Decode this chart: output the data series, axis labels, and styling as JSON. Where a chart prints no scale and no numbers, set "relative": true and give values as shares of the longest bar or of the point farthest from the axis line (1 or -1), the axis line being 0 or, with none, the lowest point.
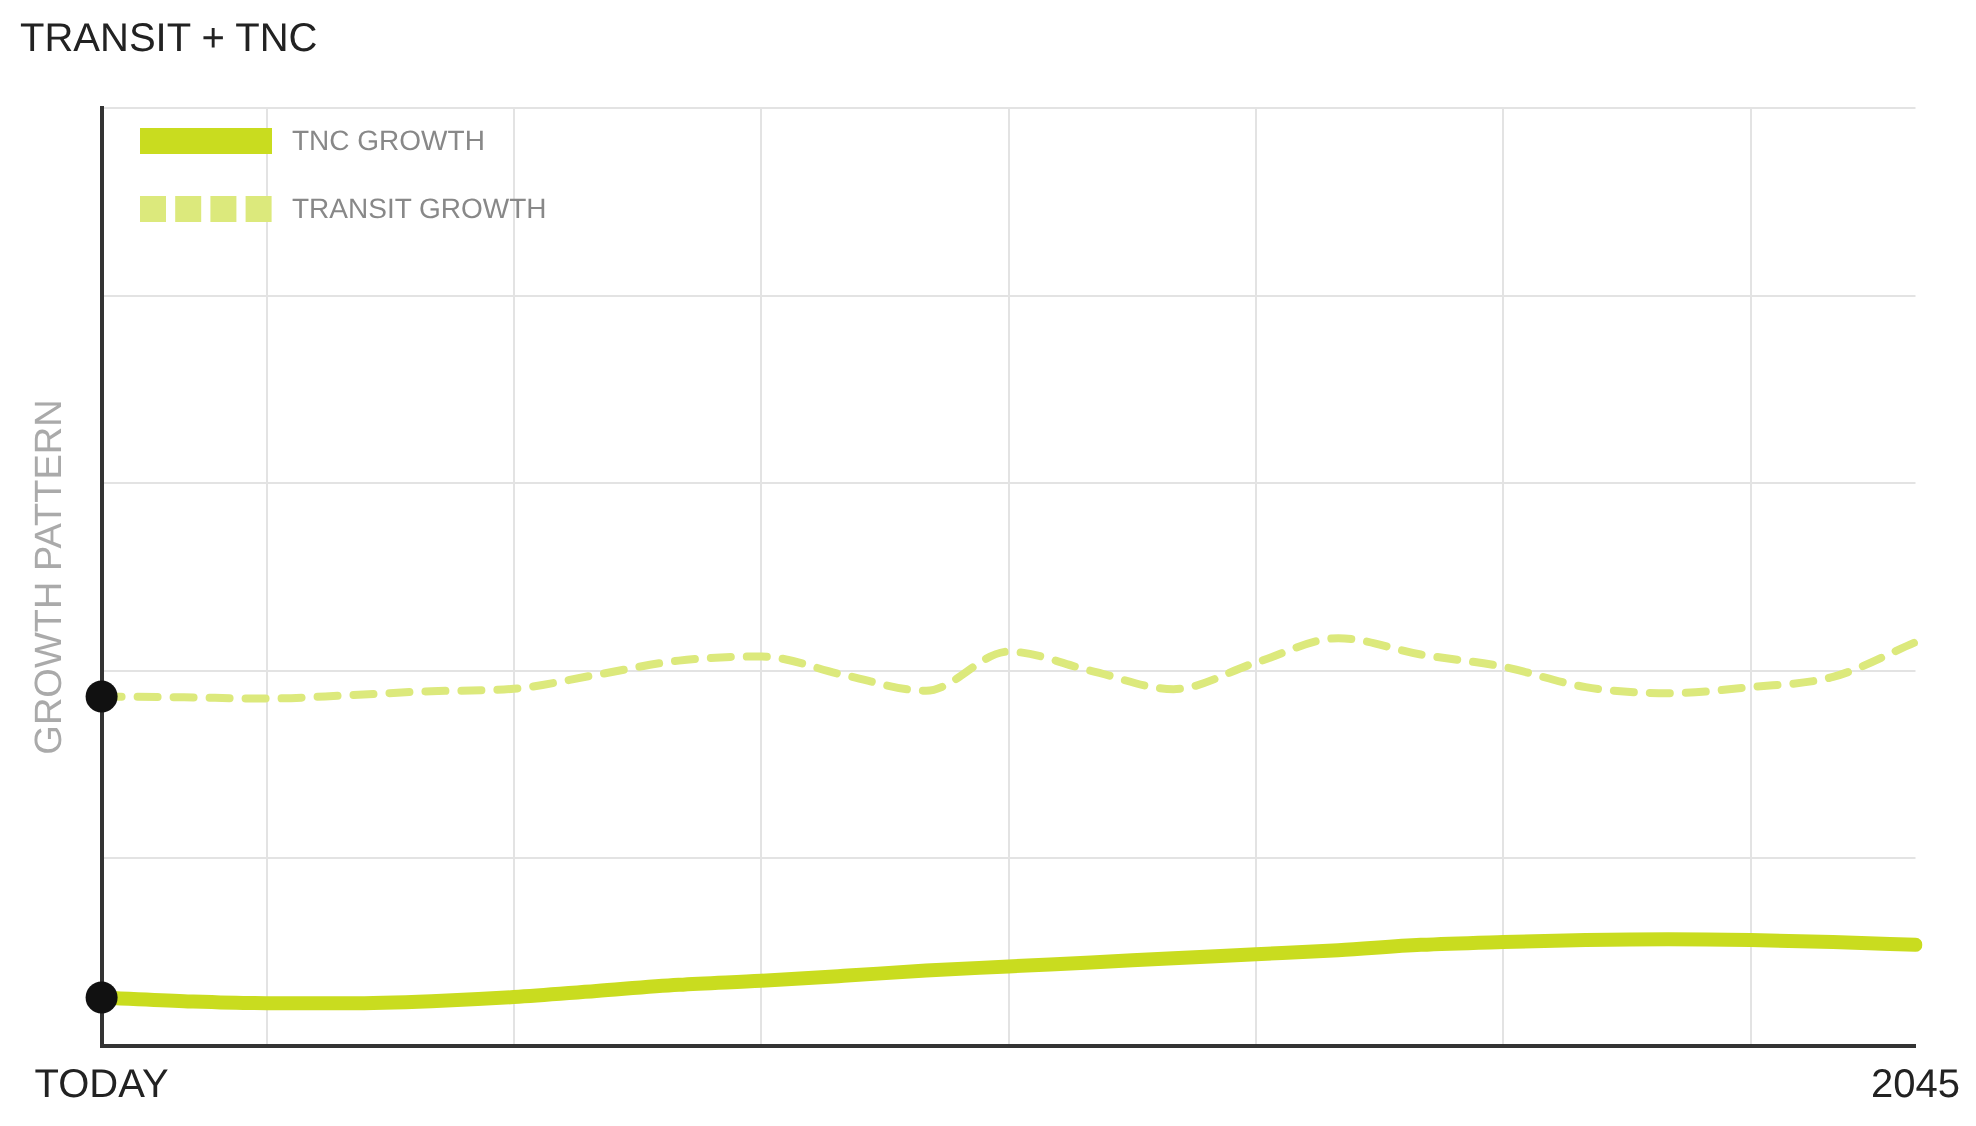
{
  "chart_data": {
    "type": "line",
    "title": "TRANSIT + TNC",
    "ylabel": "GROWTH PATTERN",
    "relative": true,
    "grid": true,
    "legend": "top left",
    "categories": [
      "TODAY",
      null,
      null,
      null,
      null,
      null,
      null,
      null,
      null,
      null,
      null,
      null,
      null,
      null,
      null,
      null,
      null,
      null,
      null,
      null,
      null,
      null,
      "2045"
    ],
    "series": [
      {
        "name": "TNC GROWTH",
        "color": "#c9dc1f",
        "line_style": "solid",
        "values": [
          0.119,
          0.11,
          0.105,
          0.105,
          0.11,
          0.12,
          0.135,
          0.15,
          0.16,
          0.172,
          0.185,
          0.195,
          0.205,
          0.215,
          0.225,
          0.235,
          0.248,
          0.255,
          0.26,
          0.262,
          0.26,
          0.255,
          0.248
        ]
      },
      {
        "name": "TRANSIT GROWTH",
        "color": "#dce97c",
        "line_style": "dashed",
        "values": [
          0.857,
          0.855,
          0.852,
          0.86,
          0.87,
          0.876,
          0.91,
          0.945,
          0.955,
          0.91,
          0.871,
          0.967,
          0.92,
          0.875,
          0.94,
          1,
          0.96,
          0.93,
          0.88,
          0.865,
          0.88,
          0.905,
          0.99
        ]
      }
    ]
  }
}
